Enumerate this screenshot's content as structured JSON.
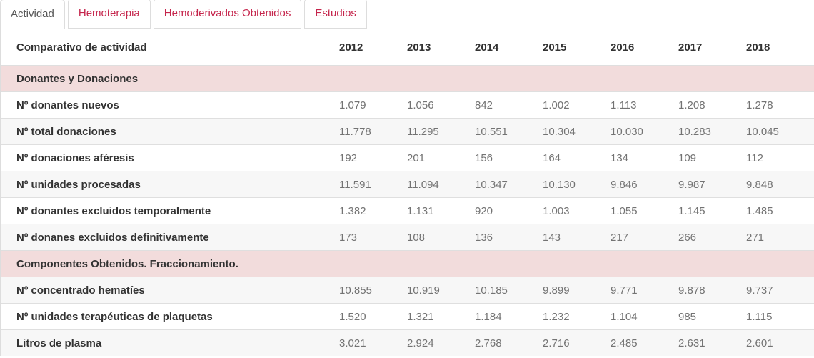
{
  "tabs": [
    {
      "label": "Actividad",
      "active": true
    },
    {
      "label": "Hemoterapia",
      "active": false
    },
    {
      "label": "Hemoderivados Obtenidos",
      "active": false
    },
    {
      "label": "Estudios",
      "active": false
    }
  ],
  "table": {
    "header": {
      "label": "Comparativo de actividad",
      "years": [
        "2012",
        "2013",
        "2014",
        "2015",
        "2016",
        "2017",
        "2018"
      ]
    },
    "sections": [
      {
        "title": "Donantes y Donaciones",
        "rows": [
          {
            "label": "Nº donantes nuevos",
            "values": [
              "1.079",
              "1.056",
              "842",
              "1.002",
              "1.113",
              "1.208",
              "1.278"
            ]
          },
          {
            "label": "Nº total donaciones",
            "values": [
              "11.778",
              "11.295",
              "10.551",
              "10.304",
              "10.030",
              "10.283",
              "10.045"
            ]
          },
          {
            "label": "Nº donaciones aféresis",
            "values": [
              "192",
              "201",
              "156",
              "164",
              "134",
              "109",
              "112"
            ]
          },
          {
            "label": "Nº unidades procesadas",
            "values": [
              "11.591",
              "11.094",
              "10.347",
              "10.130",
              "9.846",
              "9.987",
              "9.848"
            ]
          },
          {
            "label": "Nº donantes excluidos temporalmente",
            "values": [
              "1.382",
              "1.131",
              "920",
              "1.003",
              "1.055",
              "1.145",
              "1.485"
            ]
          },
          {
            "label": "Nº donanes excluidos definitivamente",
            "values": [
              "173",
              "108",
              "136",
              "143",
              "217",
              "266",
              "271"
            ]
          }
        ]
      },
      {
        "title": "Componentes Obtenidos. Fraccionamiento.",
        "rows": [
          {
            "label": "Nº concentrado hematíes",
            "values": [
              "10.855",
              "10.919",
              "10.185",
              "9.899",
              "9.771",
              "9.878",
              "9.737"
            ]
          },
          {
            "label": "Nº unidades terapéuticas de plaquetas",
            "values": [
              "1.520",
              "1.321",
              "1.184",
              "1.232",
              "1.104",
              "985",
              "1.115"
            ]
          },
          {
            "label": "Litros de plasma",
            "values": [
              "3.021",
              "2.924",
              "2.768",
              "2.716",
              "2.485",
              "2.631",
              "2.601"
            ]
          }
        ]
      }
    ]
  },
  "colors": {
    "tab_inactive_text": "#c5254c",
    "tab_active_text": "#555555",
    "section_row_bg": "#f2dcdc",
    "stripe_row_bg": "#f7f7f7",
    "border": "#dddddd",
    "label_text": "#333333",
    "value_text": "#737373"
  }
}
